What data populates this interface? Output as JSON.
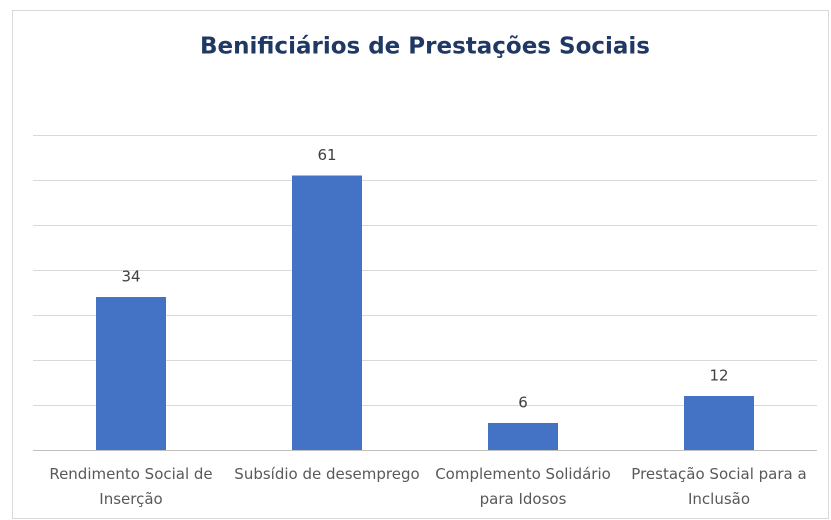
{
  "chart_data": {
    "type": "bar",
    "title": "Benificiários de Prestações Sociais",
    "categories": [
      "Rendimento Social de Inserção",
      "Subsídio de desemprego",
      "Complemento Solidário para Idosos",
      "Prestação Social para a Inclusão"
    ],
    "values": [
      34,
      61,
      6,
      12
    ],
    "color": "#4472c4",
    "ylim": [
      0,
      70
    ],
    "yticks": [
      0,
      10,
      20,
      30,
      40,
      50,
      60,
      70
    ],
    "grid": true
  }
}
